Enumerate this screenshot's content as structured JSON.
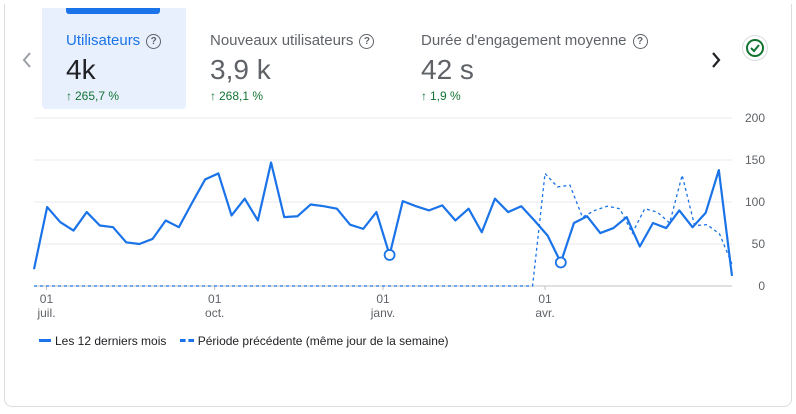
{
  "metrics": [
    {
      "label": "Utilisateurs",
      "value": "4k",
      "delta": "265,7 %",
      "active": true
    },
    {
      "label": "Nouveaux utilisateurs",
      "value": "3,9 k",
      "delta": "268,1 %",
      "active": false
    },
    {
      "label": "Durée d'engagement moyenne",
      "value": "42 s",
      "delta": "1,9 %",
      "active": false
    }
  ],
  "icons": {
    "nav_left": "chevron-left-icon",
    "nav_right": "chevron-right-icon",
    "status": "check-circle-icon",
    "help": "help-circle-icon",
    "delta": "arrow-up-icon"
  },
  "help_glyph": "?",
  "delta_arrow": "↑",
  "colors": {
    "accent": "#1a73e8",
    "positive": "#137333",
    "text_muted": "#5f6368",
    "active_bg": "#e8f0fe"
  },
  "legend": {
    "current": "Les 12 derniers mois",
    "previous": "Période précédente (même jour de la semaine)"
  },
  "chart_data": {
    "type": "line",
    "ylim": [
      0,
      200
    ],
    "yticks": [
      0,
      50,
      100,
      150,
      200
    ],
    "xlim": [
      0,
      56
    ],
    "x_ticks": [
      {
        "x": 1,
        "day": "01",
        "month": "juil."
      },
      {
        "x": 14.5,
        "day": "01",
        "month": "oct."
      },
      {
        "x": 28,
        "day": "01",
        "month": "janv."
      },
      {
        "x": 41,
        "day": "01",
        "month": "avr."
      }
    ],
    "series": [
      {
        "name": "Les 12 derniers mois",
        "style": "solid",
        "values": [
          20,
          94,
          76,
          66,
          88,
          72,
          70,
          52,
          50,
          56,
          78,
          70,
          99,
          127,
          134,
          84,
          104,
          78,
          147,
          82,
          83,
          97,
          95,
          92,
          73,
          68,
          88,
          37,
          101,
          95,
          90,
          96,
          78,
          92,
          64,
          104,
          88,
          95,
          78,
          60,
          28,
          75,
          83,
          63,
          69,
          82,
          47,
          75,
          69,
          90,
          70,
          87,
          138,
          12
        ],
        "markers": [
          {
            "index": 27,
            "value": 37
          },
          {
            "index": 40,
            "value": 28
          }
        ]
      },
      {
        "name": "Période précédente (même jour de la semaine)",
        "style": "dashed",
        "points": [
          [
            0,
            0
          ],
          [
            40,
            0
          ],
          [
            41,
            134
          ],
          [
            42,
            118
          ],
          [
            43,
            120
          ],
          [
            44,
            82
          ],
          [
            45,
            90
          ],
          [
            46,
            95
          ],
          [
            47,
            92
          ],
          [
            48,
            63
          ],
          [
            49,
            92
          ],
          [
            50,
            88
          ],
          [
            51,
            75
          ],
          [
            52,
            132
          ],
          [
            53,
            72
          ],
          [
            54,
            73
          ],
          [
            55,
            62
          ],
          [
            56,
            26
          ]
        ]
      }
    ]
  }
}
